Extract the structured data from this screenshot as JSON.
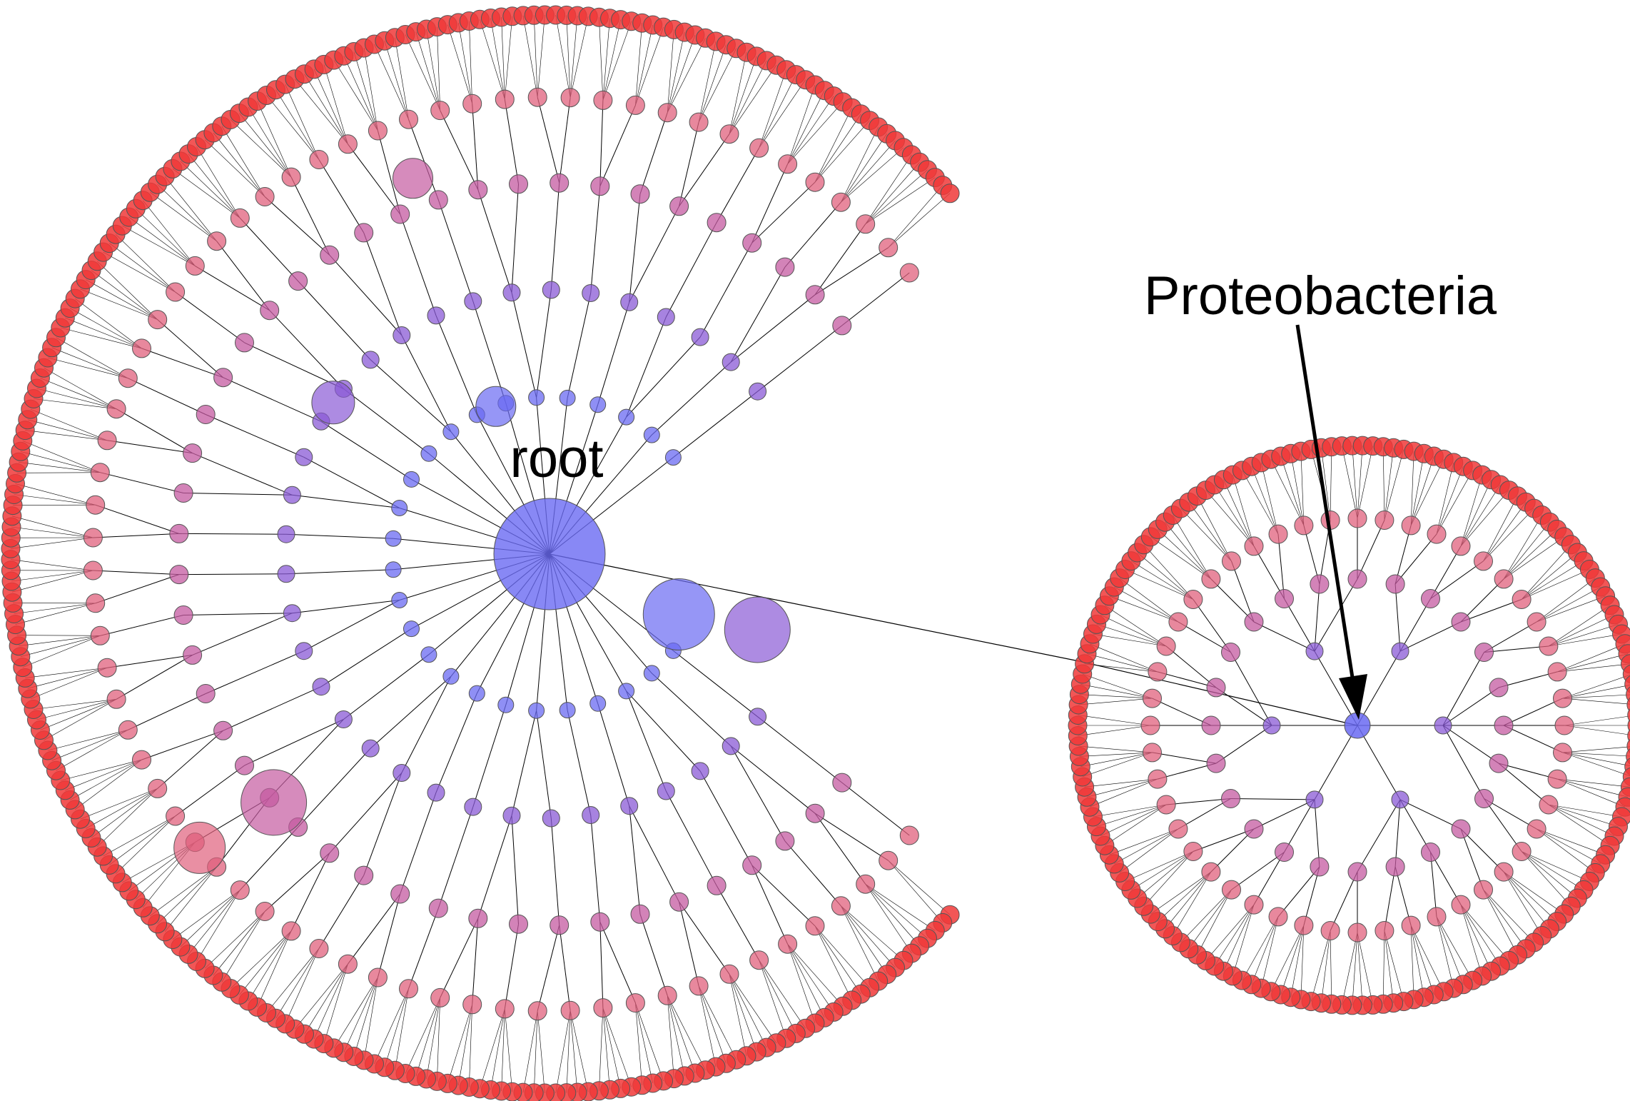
{
  "diagram": {
    "type": "radial-tree",
    "labels": {
      "root": "root",
      "callout": "Proteobacteria"
    },
    "colors": {
      "background": "#ffffff",
      "edge": "#000000",
      "root_node": "#6a6af2",
      "inner_node": "#8a5ad6",
      "mid_node": "#c45aa0",
      "outer_node": "#e0607c",
      "leaf_node": "#f03838",
      "node_stroke": "#555555",
      "arrow": "#000000"
    }
  }
}
